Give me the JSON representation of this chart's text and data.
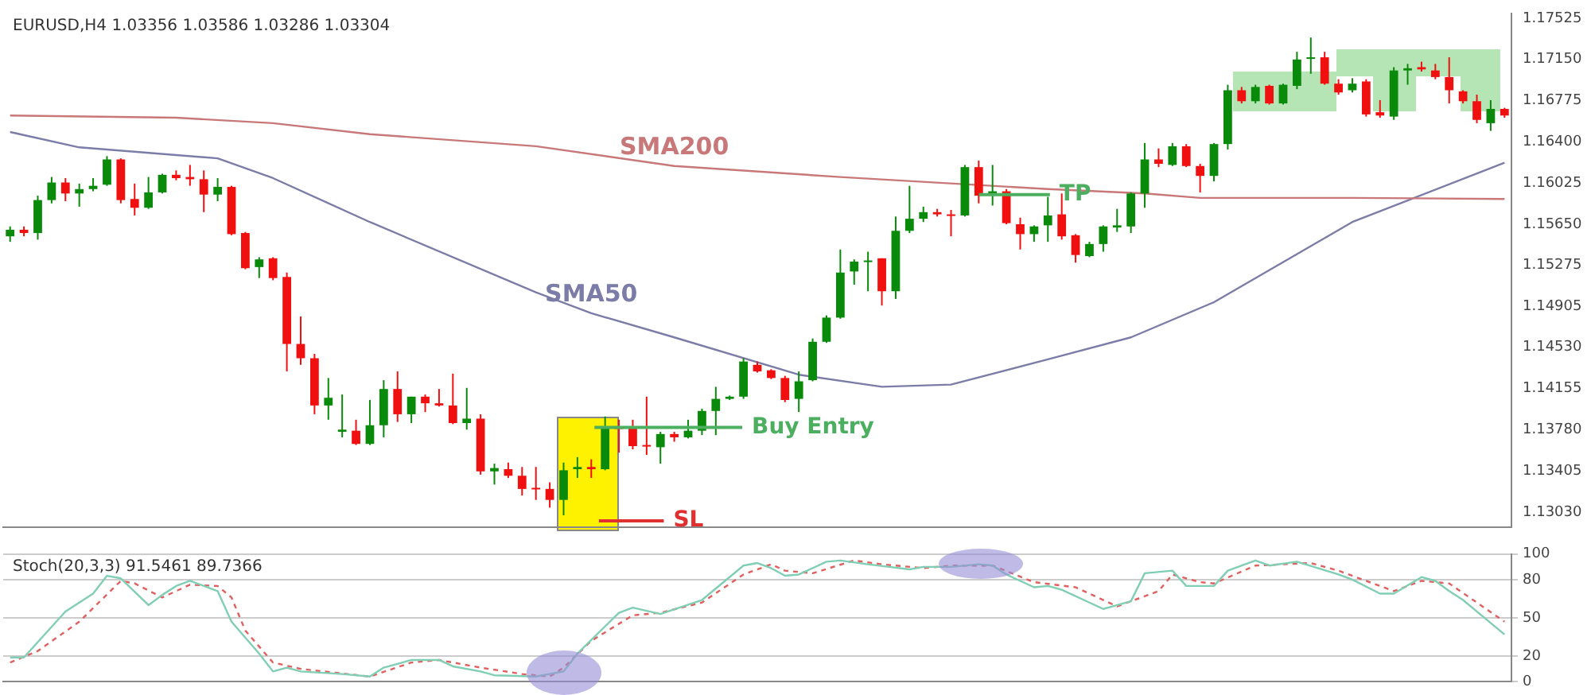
{
  "chart_data": [
    {
      "type": "candlestick",
      "title": "EURUSD,H4 1.03356 1.03586 1.03286 1.03304",
      "categories": [
        null,
        null,
        null,
        null,
        null,
        null,
        null,
        null,
        null,
        null,
        null,
        null,
        null,
        null,
        null,
        null,
        null,
        null,
        null,
        null,
        null,
        null,
        null,
        null,
        null,
        null,
        null,
        null,
        null,
        null,
        null,
        null,
        null,
        null,
        null,
        null,
        null,
        null,
        null,
        null,
        null,
        null,
        null,
        null,
        null,
        null,
        null,
        null,
        null,
        null,
        null,
        null,
        null,
        null,
        null,
        null,
        null,
        null,
        null,
        null,
        null,
        null,
        null,
        null,
        null,
        null,
        null,
        null,
        null,
        null,
        null,
        null,
        null,
        null,
        null,
        null,
        null,
        null,
        null,
        null,
        null,
        null,
        null,
        null,
        null,
        null,
        null,
        null,
        null,
        null,
        null,
        null,
        null,
        null,
        null,
        null,
        null,
        null,
        null,
        null,
        null,
        null,
        null,
        null,
        null,
        null,
        null,
        null,
        null
      ],
      "ohlc": [
        [
          1.1554,
          1.1563,
          1.1549,
          1.156
        ],
        [
          1.156,
          1.1563,
          1.1554,
          1.1557
        ],
        [
          1.1557,
          1.1591,
          1.1551,
          1.1587
        ],
        [
          1.1587,
          1.1608,
          1.1584,
          1.1603
        ],
        [
          1.1603,
          1.1607,
          1.1586,
          1.1593
        ],
        [
          1.1593,
          1.1602,
          1.1581,
          1.1597
        ],
        [
          1.1597,
          1.1607,
          1.1595,
          1.16
        ],
        [
          1.1601,
          1.1627,
          1.16,
          1.1624
        ],
        [
          1.1624,
          1.1625,
          1.1584,
          1.1587
        ],
        [
          1.1588,
          1.1602,
          1.1573,
          1.158
        ],
        [
          1.158,
          1.1608,
          1.1579,
          1.1594
        ],
        [
          1.1594,
          1.1611,
          1.1593,
          1.161
        ],
        [
          1.161,
          1.1614,
          1.1605,
          1.1607
        ],
        [
          1.1608,
          1.1619,
          1.16,
          1.1606
        ],
        [
          1.1606,
          1.1614,
          1.1576,
          1.1592
        ],
        [
          1.1592,
          1.1607,
          1.1586,
          1.1599
        ],
        [
          1.1599,
          1.16,
          1.1555,
          1.1556
        ],
        [
          1.1557,
          1.1558,
          1.1524,
          1.1525
        ],
        [
          1.1526,
          1.1535,
          1.1516,
          1.1533
        ],
        [
          1.1534,
          1.1535,
          1.1514,
          1.1516
        ],
        [
          1.1517,
          1.1521,
          1.1431,
          1.1456
        ],
        [
          1.1456,
          1.1481,
          1.1437,
          1.1443
        ],
        [
          1.1443,
          1.1447,
          1.1392,
          1.14
        ],
        [
          1.14,
          1.1425,
          1.1387,
          1.1407
        ],
        [
          1.1376,
          1.141,
          1.1371,
          1.1378
        ],
        [
          1.1377,
          1.1387,
          1.1364,
          1.1365
        ],
        [
          1.1365,
          1.1405,
          1.1364,
          1.1382
        ],
        [
          1.1382,
          1.1423,
          1.1371,
          1.1415
        ],
        [
          1.1415,
          1.1431,
          1.1385,
          1.1392
        ],
        [
          1.1392,
          1.1408,
          1.1384,
          1.1408
        ],
        [
          1.1408,
          1.141,
          1.1394,
          1.1402
        ],
        [
          1.1402,
          1.1415,
          1.1399,
          1.14
        ],
        [
          1.14,
          1.1429,
          1.1383,
          1.1384
        ],
        [
          1.1384,
          1.1416,
          1.1378,
          1.1388
        ],
        [
          1.1388,
          1.1392,
          1.1337,
          1.134
        ],
        [
          1.134,
          1.1347,
          1.1328,
          1.1343
        ],
        [
          1.1342,
          1.1348,
          1.1334,
          1.1336
        ],
        [
          1.1336,
          1.1344,
          1.1318,
          1.1324
        ],
        [
          1.1325,
          1.1344,
          1.1314,
          1.1324
        ],
        [
          1.1324,
          1.133,
          1.1307,
          1.1314
        ],
        [
          1.1314,
          1.1348,
          1.13,
          1.1341
        ],
        [
          1.1342,
          1.1353,
          1.1334,
          1.1344
        ],
        [
          1.1344,
          1.1351,
          1.1334,
          1.1342
        ],
        [
          1.1342,
          1.139,
          1.1341,
          1.138
        ],
        [
          1.138,
          1.1387,
          1.1357,
          1.1379
        ],
        [
          1.1379,
          1.1387,
          1.136,
          1.1363
        ],
        [
          1.1364,
          1.1408,
          1.1355,
          1.1363
        ],
        [
          1.1362,
          1.1376,
          1.1347,
          1.1374
        ],
        [
          1.1374,
          1.1376,
          1.1367,
          1.1371
        ],
        [
          1.1371,
          1.1387,
          1.137,
          1.1377
        ],
        [
          1.1377,
          1.1397,
          1.1373,
          1.1395
        ],
        [
          1.1395,
          1.1417,
          1.1373,
          1.1406
        ],
        [
          1.1406,
          1.1409,
          1.1405,
          1.1408
        ],
        [
          1.1408,
          1.1443,
          1.1406,
          1.144
        ],
        [
          1.1437,
          1.144,
          1.143,
          1.1431
        ],
        [
          1.1432,
          1.1433,
          1.1424,
          1.1425
        ],
        [
          1.1425,
          1.1427,
          1.1403,
          1.1405
        ],
        [
          1.1406,
          1.1431,
          1.1394,
          1.1422
        ],
        [
          1.1423,
          1.1461,
          1.1422,
          1.1458
        ],
        [
          1.1458,
          1.1482,
          1.1457,
          1.148
        ],
        [
          1.148,
          1.1542,
          1.1479,
          1.1521
        ],
        [
          1.1522,
          1.1533,
          1.151,
          1.1531
        ],
        [
          1.1531,
          1.154,
          1.1504,
          1.1532
        ],
        [
          1.1534,
          1.1534,
          1.1491,
          1.1504
        ],
        [
          1.1504,
          1.1572,
          1.1497,
          1.1559
        ],
        [
          1.1559,
          1.16,
          1.1557,
          1.157
        ],
        [
          1.157,
          1.1581,
          1.1567,
          1.1576
        ],
        [
          1.1576,
          1.1579,
          1.1572,
          1.1574
        ],
        [
          1.1574,
          1.1578,
          1.1554,
          1.1573
        ],
        [
          1.1573,
          1.1619,
          1.1572,
          1.1617
        ],
        [
          1.1617,
          1.1623,
          1.1584,
          1.1591
        ],
        [
          1.1591,
          1.1619,
          1.1582,
          1.1595
        ],
        [
          1.1595,
          1.1597,
          1.1565,
          1.1566
        ],
        [
          1.1565,
          1.1571,
          1.1542,
          1.1556
        ],
        [
          1.1556,
          1.1564,
          1.1549,
          1.1563
        ],
        [
          1.1564,
          1.159,
          1.1549,
          1.1573
        ],
        [
          1.1574,
          1.1593,
          1.1551,
          1.1554
        ],
        [
          1.1555,
          1.1556,
          1.153,
          1.1537
        ],
        [
          1.1536,
          1.1549,
          1.1535,
          1.1547
        ],
        [
          1.1547,
          1.1564,
          1.154,
          1.1563
        ],
        [
          1.1562,
          1.1579,
          1.1558,
          1.1564
        ],
        [
          1.1563,
          1.1594,
          1.1557,
          1.1593
        ],
        [
          1.1593,
          1.1639,
          1.158,
          1.1624
        ],
        [
          1.1624,
          1.1634,
          1.1617,
          1.162
        ],
        [
          1.1619,
          1.1639,
          1.1618,
          1.1636
        ],
        [
          1.1636,
          1.1638,
          1.1617,
          1.1618
        ],
        [
          1.1618,
          1.162,
          1.1594,
          1.1609
        ],
        [
          1.1609,
          1.1639,
          1.1604,
          1.1638
        ],
        [
          1.1638,
          1.1692,
          1.1633,
          1.1687
        ],
        [
          1.1687,
          1.169,
          1.1675,
          1.1677
        ],
        [
          1.1677,
          1.1692,
          1.1675,
          1.169
        ],
        [
          1.1691,
          1.1692,
          1.1674,
          1.1675
        ],
        [
          1.1675,
          1.1693,
          1.1674,
          1.1692
        ],
        [
          1.1691,
          1.1722,
          1.1688,
          1.1715
        ],
        [
          1.1716,
          1.1735,
          1.1702,
          1.1717
        ],
        [
          1.1717,
          1.1722,
          1.1692,
          1.1693
        ],
        [
          1.1693,
          1.1697,
          1.1683,
          1.1685
        ],
        [
          1.1687,
          1.1698,
          1.1685,
          1.1693
        ],
        [
          1.1695,
          1.1697,
          1.1663,
          1.1665
        ],
        [
          1.1667,
          1.1678,
          1.1662,
          1.1664
        ],
        [
          1.1663,
          1.1708,
          1.166,
          1.1705
        ],
        [
          1.1705,
          1.1711,
          1.1692,
          1.1707
        ],
        [
          1.1708,
          1.1713,
          1.1704,
          1.1706
        ],
        [
          1.1705,
          1.1711,
          1.1697,
          1.1699
        ],
        [
          1.1699,
          1.1717,
          1.1675,
          1.1687
        ],
        [
          1.1686,
          1.1687,
          1.1675,
          1.1677
        ],
        [
          1.1677,
          1.1683,
          1.1657,
          1.166
        ],
        [
          1.1657,
          1.1678,
          1.165,
          1.167
        ],
        [
          1.167,
          1.1671,
          1.1662,
          1.1664
        ]
      ],
      "series": [
        {
          "type": "line",
          "name": "SMA200",
          "color": "#c87878",
          "values": [
            1.1664,
            null,
            null,
            null,
            null,
            null,
            null,
            null,
            null,
            null,
            null,
            null,
            1.1662,
            null,
            null,
            null,
            null,
            null,
            null,
            1.1657,
            null,
            null,
            null,
            null,
            null,
            null,
            1.1647,
            null,
            null,
            null,
            null,
            null,
            null,
            null,
            null,
            null,
            null,
            null,
            1.1636,
            null,
            null,
            null,
            null,
            null,
            null,
            null,
            null,
            null,
            1.1618,
            null,
            null,
            null,
            null,
            null,
            null,
            null,
            null,
            null,
            null,
            null,
            1.1608,
            null,
            null,
            null,
            null,
            null,
            null,
            null,
            null,
            null,
            null,
            null,
            null,
            null,
            null,
            1.1597,
            null,
            null,
            null,
            null,
            null,
            null,
            1.1593,
            null,
            null,
            null,
            1.1589,
            null,
            null,
            null,
            null,
            null,
            null,
            null,
            null,
            null,
            null,
            1.1589,
            null,
            null,
            null,
            null,
            null,
            null,
            null,
            null,
            null,
            null,
            1.1588
          ]
        },
        {
          "type": "line",
          "name": "SMA50",
          "color": "#7c7ca8",
          "values": [
            1.1649,
            null,
            null,
            null,
            null,
            1.1635,
            null,
            null,
            null,
            null,
            null,
            null,
            null,
            null,
            null,
            1.1625,
            null,
            null,
            null,
            1.1607,
            null,
            null,
            null,
            null,
            null,
            null,
            1.1567,
            null,
            null,
            null,
            null,
            null,
            null,
            null,
            null,
            null,
            null,
            null,
            1.1503,
            null,
            null,
            null,
            1.1484,
            null,
            null,
            null,
            null,
            null,
            1.1462,
            null,
            null,
            null,
            null,
            null,
            null,
            null,
            null,
            1.1428,
            null,
            null,
            null,
            null,
            null,
            1.1417,
            null,
            null,
            null,
            null,
            1.1419,
            null,
            null,
            null,
            null,
            null,
            null,
            1.1442,
            null,
            null,
            null,
            null,
            null,
            1.1462,
            null,
            null,
            null,
            null,
            null,
            1.1494,
            null,
            null,
            null,
            null,
            null,
            null,
            null,
            null,
            null,
            1.1567,
            null,
            null,
            null,
            null,
            null,
            null,
            null,
            null,
            null,
            null,
            1.1621
          ]
        }
      ],
      "ref_lines": [
        {
          "axis": "y",
          "value": 1.1592,
          "label": "TP",
          "color": "#4caf60"
        },
        {
          "axis": "y",
          "value": 1.138,
          "label": "Buy Entry",
          "color": "#4caf60"
        },
        {
          "axis": "y",
          "value": 1.1295,
          "label": "SL",
          "color": "#e03030"
        }
      ],
      "ylim": [
        1.1289,
        1.1757
      ],
      "yticks": [
        {
          "value": 1.1303,
          "label": "1.13030"
        },
        1.13405,
        {
          "value": 1.1378,
          "label": "1.13780"
        },
        1.14155,
        {
          "value": 1.1453,
          "label": "1.14530"
        },
        1.14905,
        1.15275,
        {
          "value": 1.1565,
          "label": "1.15650"
        },
        1.16025,
        {
          "value": 1.164,
          "label": "1.16400"
        },
        1.16775,
        {
          "value": 1.1715,
          "label": "1.17150"
        },
        1.17525
      ],
      "tick_labels": "y",
      "marker": "none",
      "grid": false,
      "legend": false
    },
    {
      "type": "line",
      "title": "Stoch(20,3,3) 91.5461 89.7366",
      "categories": [
        null,
        null,
        null,
        null,
        null,
        null,
        null,
        null,
        null,
        null,
        null,
        null,
        null,
        null,
        null,
        null,
        null,
        null,
        null,
        null,
        null,
        null,
        null,
        null,
        null,
        null,
        null,
        null,
        null,
        null,
        null,
        null,
        null,
        null,
        null,
        null,
        null,
        null,
        null,
        null,
        null,
        null,
        null,
        null,
        null,
        null,
        null,
        null,
        null,
        null,
        null,
        null,
        null,
        null,
        null,
        null,
        null,
        null,
        null,
        null,
        null,
        null,
        null,
        null,
        null,
        null,
        null,
        null,
        null,
        null,
        null,
        null,
        null,
        null,
        null,
        null,
        null,
        null,
        null,
        null,
        null,
        null,
        null,
        null,
        null,
        null,
        null,
        null,
        null,
        null,
        null,
        null,
        null,
        null,
        null,
        null,
        null,
        null,
        null,
        null,
        null,
        null,
        null,
        null,
        null,
        null,
        null,
        null,
        null
      ],
      "series": [
        {
          "color": "#80ceb4",
          "line_style": "solid",
          "values": [
            19,
            19,
            null,
            null,
            55,
            null,
            69,
            83,
            81,
            null,
            60,
            68,
            75,
            79,
            null,
            71,
            47,
            null,
            22,
            8,
            11,
            8,
            null,
            null,
            6,
            null,
            4,
            11,
            null,
            17,
            null,
            17,
            12,
            null,
            8,
            5,
            null,
            null,
            4,
            null,
            8,
            22,
            null,
            null,
            54,
            58,
            null,
            53,
            null,
            null,
            64,
            null,
            null,
            91,
            93,
            89,
            83,
            84,
            null,
            94,
            95,
            null,
            92,
            null,
            null,
            88,
            90,
            null,
            90,
            null,
            92,
            91,
            84,
            null,
            74,
            75,
            72,
            null,
            62,
            57,
            null,
            63,
            85,
            null,
            87,
            75,
            null,
            75,
            87,
            null,
            95,
            91,
            null,
            94,
            null,
            null,
            84,
            80,
            null,
            69,
            69,
            null,
            82,
            79,
            71,
            64,
            null,
            null,
            37
          ]
        },
        {
          "color": "#e06060",
          "line_style": "dashed",
          "values": [
            15,
            null,
            24,
            null,
            null,
            47,
            null,
            null,
            79,
            77,
            null,
            66,
            null,
            76,
            null,
            75,
            66,
            40,
            null,
            15,
            null,
            10,
            null,
            null,
            null,
            null,
            4,
            null,
            null,
            15,
            null,
            17,
            null,
            null,
            11,
            null,
            null,
            6,
            null,
            4,
            11,
            null,
            32,
            null,
            null,
            52,
            null,
            54,
            null,
            null,
            62,
            null,
            null,
            84,
            null,
            92,
            87,
            null,
            85,
            null,
            null,
            95,
            null,
            92,
            null,
            null,
            89,
            null,
            91,
            null,
            null,
            91,
            null,
            null,
            78,
            null,
            null,
            74,
            null,
            64,
            59,
            null,
            null,
            71,
            84,
            null,
            78,
            77,
            null,
            null,
            91,
            null,
            null,
            null,
            93,
            null,
            87,
            null,
            null,
            null,
            71,
            null,
            79,
            null,
            77,
            null,
            null,
            null,
            47
          ]
        }
      ],
      "ylim": [
        0,
        100
      ],
      "yticks": [
        0,
        20,
        50,
        80,
        100
      ],
      "tick_labels": "y",
      "marker": "none",
      "grid": "y",
      "legend": false
    }
  ]
}
